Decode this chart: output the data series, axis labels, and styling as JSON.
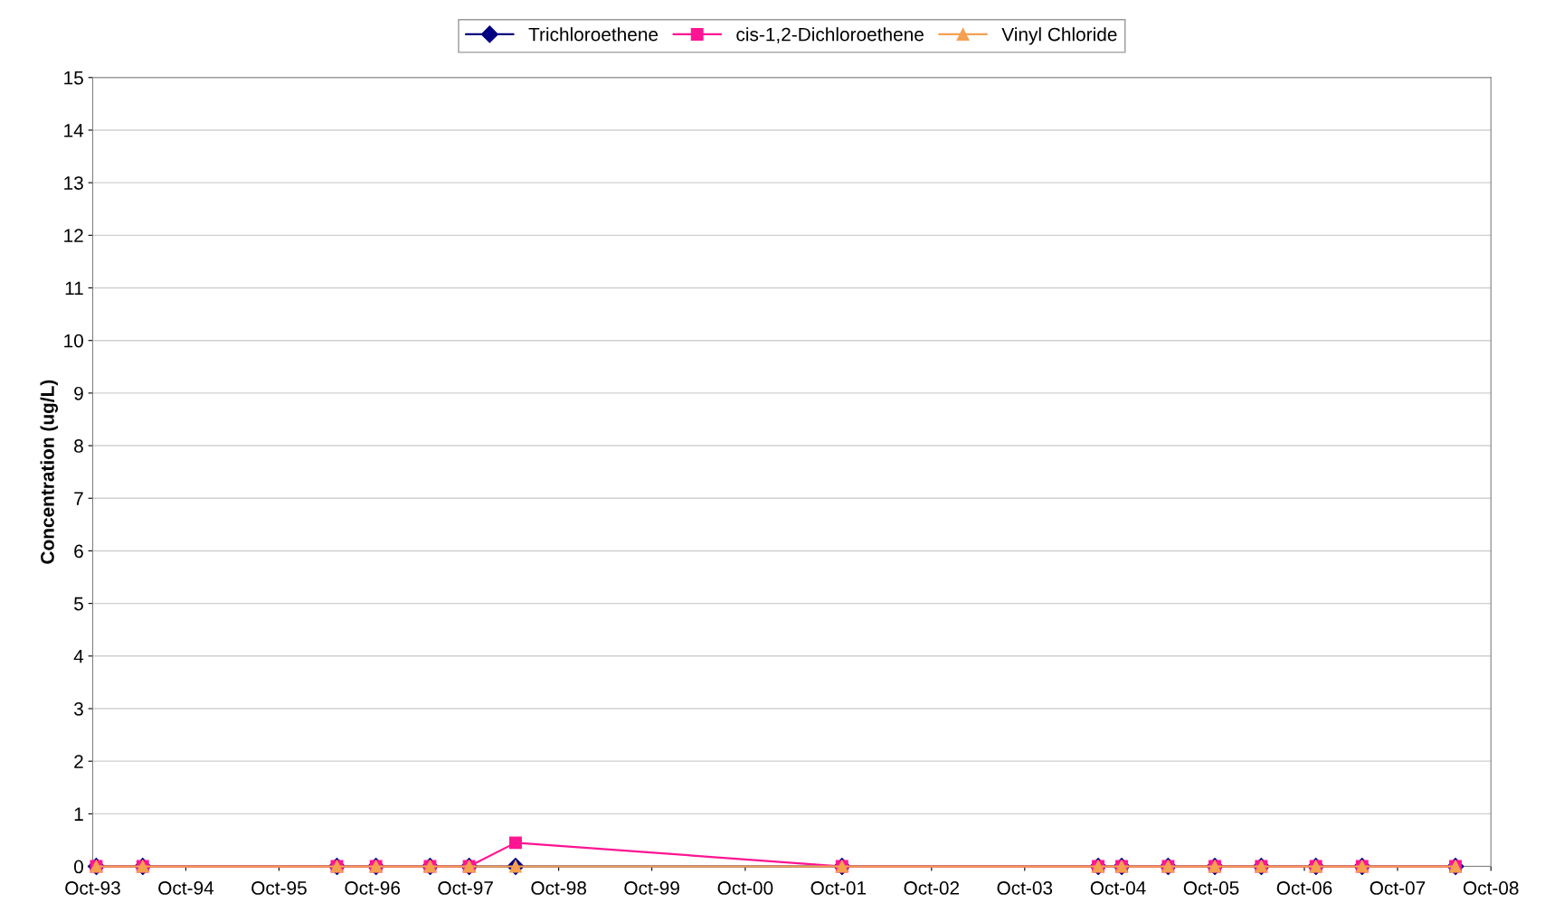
{
  "chart_data": {
    "type": "line",
    "ylabel": "Concentration (ug/L)",
    "x": [
      "1993-10-15",
      "1994-04-15",
      "1996-05-15",
      "1996-10-15",
      "1997-05-15",
      "1997-10-15",
      "1998-04-15",
      "2001-10-15",
      "2004-07-15",
      "2004-10-15",
      "2005-04-15",
      "2005-10-15",
      "2006-04-15",
      "2006-11-15",
      "2007-05-15",
      "2008-05-15"
    ],
    "series": [
      {
        "name": "Trichloroethene",
        "color": "#000080",
        "marker": "diamond",
        "values": [
          0,
          0,
          0,
          0,
          0,
          0,
          0,
          0,
          0,
          0,
          0,
          0,
          0,
          0,
          0,
          0
        ]
      },
      {
        "name": "cis-1,2-Dichloroethene",
        "color": "#ff1493",
        "marker": "square",
        "values": [
          0,
          0,
          0,
          0,
          0,
          0,
          0.45,
          0,
          0,
          0,
          0,
          0,
          0,
          0,
          0,
          0
        ]
      },
      {
        "name": "Vinyl Chloride",
        "color": "#f5a050",
        "marker": "triangle",
        "values": [
          0,
          0,
          0,
          0,
          0,
          0,
          0,
          0,
          0,
          0,
          0,
          0,
          0,
          0,
          0,
          0
        ]
      }
    ],
    "xlim": [
      "1993-10-01",
      "2008-10-01"
    ],
    "xticks": [
      {
        "value": "1993-10-01",
        "label": "Oct-93"
      },
      {
        "value": "1994-10-01",
        "label": "Oct-94"
      },
      {
        "value": "1995-10-01",
        "label": "Oct-95"
      },
      {
        "value": "1996-10-01",
        "label": "Oct-96"
      },
      {
        "value": "1997-10-01",
        "label": "Oct-97"
      },
      {
        "value": "1998-10-01",
        "label": "Oct-98"
      },
      {
        "value": "1999-10-01",
        "label": "Oct-99"
      },
      {
        "value": "2000-10-01",
        "label": "Oct-00"
      },
      {
        "value": "2001-10-01",
        "label": "Oct-01"
      },
      {
        "value": "2002-10-01",
        "label": "Oct-02"
      },
      {
        "value": "2003-10-01",
        "label": "Oct-03"
      },
      {
        "value": "2004-10-01",
        "label": "Oct-04"
      },
      {
        "value": "2005-10-01",
        "label": "Oct-05"
      },
      {
        "value": "2006-10-01",
        "label": "Oct-06"
      },
      {
        "value": "2007-10-01",
        "label": "Oct-07"
      },
      {
        "value": "2008-10-01",
        "label": "Oct-08"
      }
    ],
    "ylim": [
      0,
      15
    ],
    "yticks": [
      0,
      1,
      2,
      3,
      4,
      5,
      6,
      7,
      8,
      9,
      10,
      11,
      12,
      13,
      14,
      15
    ],
    "grid": "y",
    "legend": "top"
  }
}
